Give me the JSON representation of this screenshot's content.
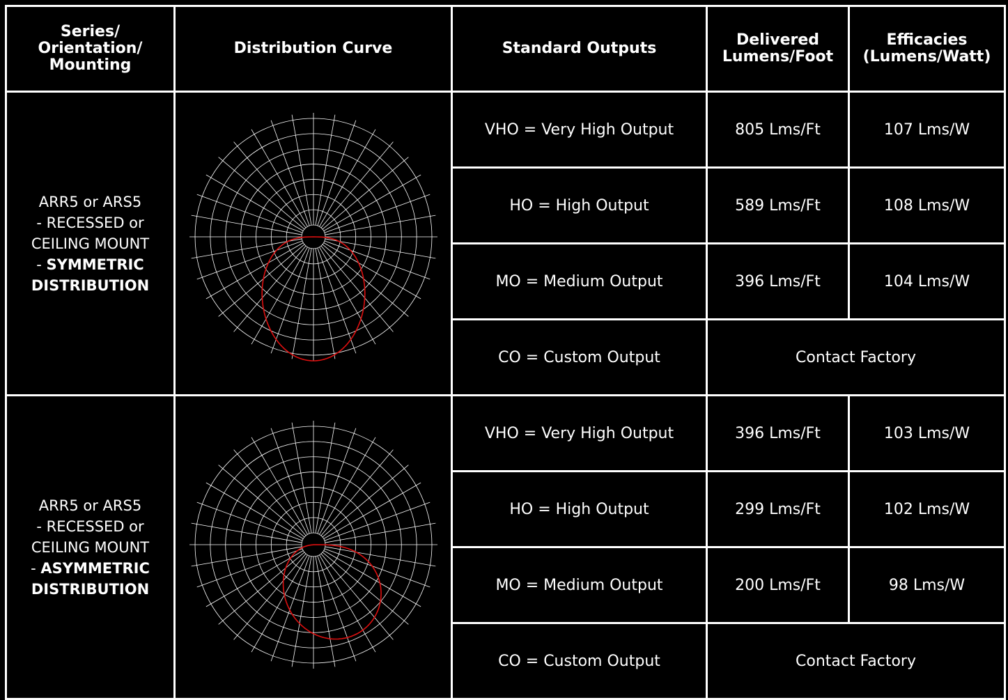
{
  "headers": {
    "series": "Series/ Orientation/ Mounting",
    "curve": "Distribution Curve",
    "outputs": "Standard Outputs",
    "lumens": "Delivered Lumens/Foot",
    "efficacy": "Efficacies (Lumens/Watt)"
  },
  "groups": [
    {
      "series_line1": "ARR5 or ARS5",
      "series_line2": "- RECESSED or",
      "series_line3": "CEILING MOUNT",
      "series_dash": "- ",
      "series_bold": "SYMMETRIC DISTRIBUTION",
      "rows": [
        {
          "output": "VHO = Very High Output",
          "lumens": "805 Lms/Ft",
          "efficacy": "107 Lms/W"
        },
        {
          "output": "HO = High Output",
          "lumens": "589 Lms/Ft",
          "efficacy": "108 Lms/W"
        },
        {
          "output": "MO = Medium Output",
          "lumens": "396 Lms/Ft",
          "efficacy": "104 Lms/W"
        },
        {
          "output": "CO = Custom Output",
          "contact": "Contact Factory"
        }
      ]
    },
    {
      "series_line1": "ARR5 or ARS5",
      "series_line2": "- RECESSED or",
      "series_line3": "CEILING MOUNT",
      "series_dash": "- ",
      "series_bold": "ASYMMETRIC DISTRIBUTION",
      "rows": [
        {
          "output": "VHO = Very High Output",
          "lumens": "396 Lms/Ft",
          "efficacy": "103 Lms/W"
        },
        {
          "output": "HO = High Output",
          "lumens": "299 Lms/Ft",
          "efficacy": "102 Lms/W"
        },
        {
          "output": "MO = Medium Output",
          "lumens": "200 Lms/Ft",
          "efficacy": "98 Lms/W"
        },
        {
          "output": "CO = Custom Output",
          "contact": "Contact Factory"
        }
      ]
    }
  ],
  "colors": {
    "background": "#000000",
    "grid": "#ffffff",
    "curve": "#e01010",
    "text": "#ffffff"
  }
}
